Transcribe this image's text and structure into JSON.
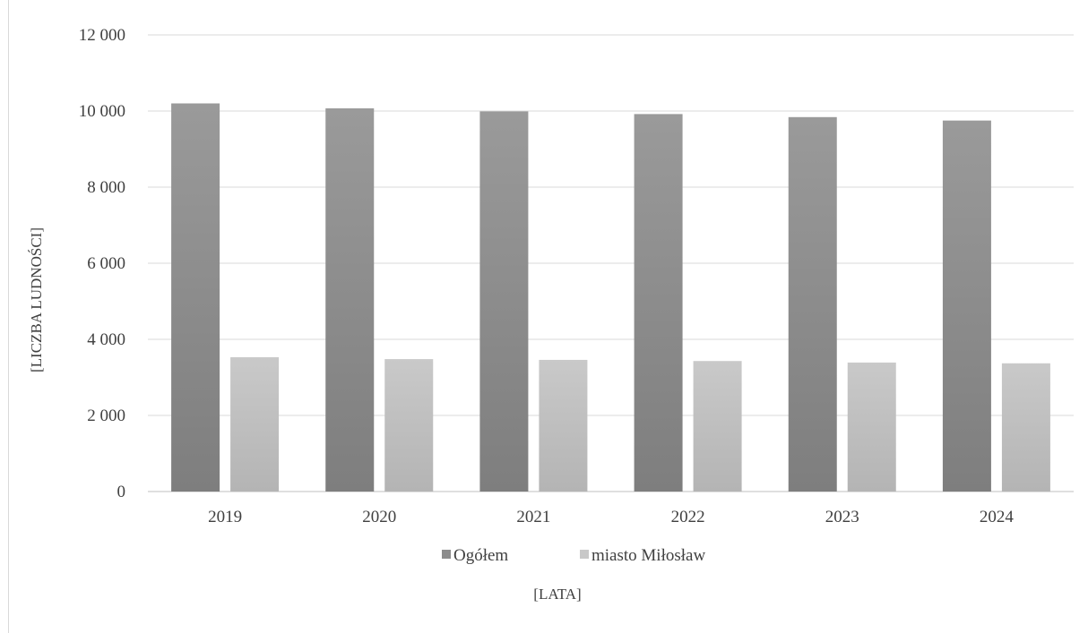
{
  "chart_data": {
    "type": "bar",
    "title": "",
    "xlabel": "[LATA]",
    "ylabel": "[LICZBA LUDNOŚCI]",
    "categories": [
      "2019",
      "2020",
      "2021",
      "2022",
      "2023",
      "2024"
    ],
    "series": [
      {
        "name": "Ogółem",
        "values": [
          10200,
          10070,
          9990,
          9920,
          9840,
          9750
        ],
        "color": "#8c8c8c"
      },
      {
        "name": "miasto Miłosław",
        "values": [
          3530,
          3480,
          3460,
          3430,
          3390,
          3370
        ],
        "color": "#c8c8c8"
      }
    ],
    "ylim": [
      0,
      12000
    ],
    "yticks": [
      0,
      2000,
      4000,
      6000,
      8000,
      10000,
      12000
    ],
    "ytick_labels": [
      "0",
      "2 000",
      "4 000",
      "6 000",
      "8 000",
      "10 000",
      "12 000"
    ],
    "grid": true,
    "legend_position": "bottom"
  }
}
